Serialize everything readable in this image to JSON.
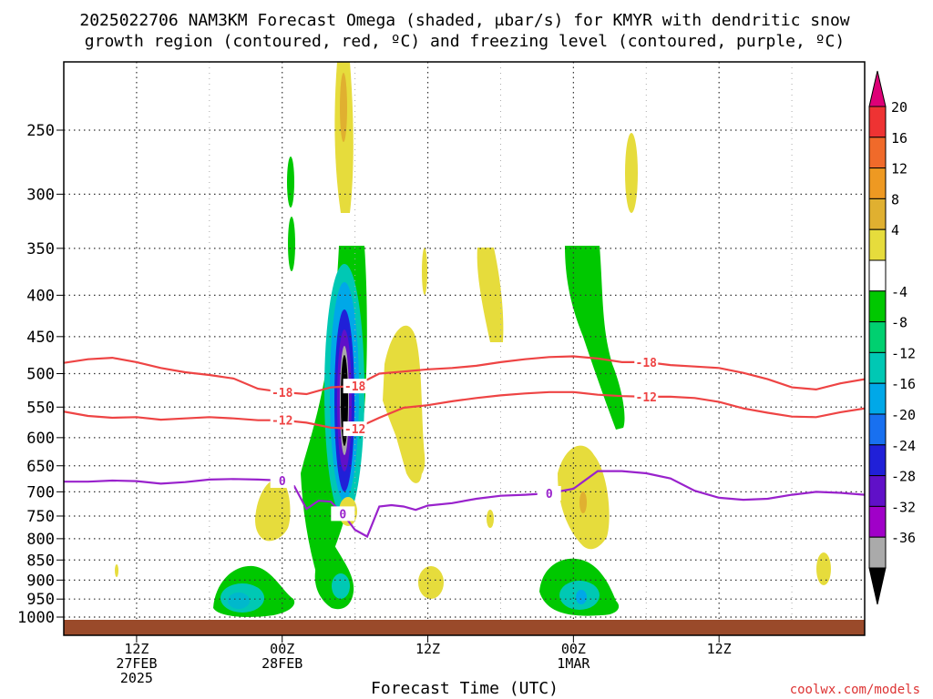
{
  "chart_data": {
    "type": "heatmap",
    "title": "2025022706 NAM3KM Forecast Omega (shaded, μbar/s) for KMYR with dendritic snow",
    "subtitle": "growth region (contoured, red, ºC) and freezing level (contoured, purple, ºC)",
    "xlabel": "Forecast Time (UTC)",
    "credit": "coolwx.com/models",
    "y_axis": {
      "scale": "pressure (log)",
      "ticks": [
        250,
        300,
        350,
        400,
        450,
        500,
        550,
        600,
        650,
        700,
        750,
        800,
        850,
        900,
        950,
        1000
      ],
      "ylim": [
        1000,
        200
      ]
    },
    "x_axis": {
      "unit": "hours since 2025-02-27 06Z",
      "xlim": [
        0,
        66
      ],
      "ticks": [
        {
          "hour": 6,
          "l1": "12Z",
          "l2": "27FEB",
          "l3": "2025"
        },
        {
          "hour": 18,
          "l1": "00Z",
          "l2": "28FEB",
          "l3": ""
        },
        {
          "hour": 30,
          "l1": "12Z",
          "l2": "",
          "l3": ""
        },
        {
          "hour": 42,
          "l1": "00Z",
          "l2": "1MAR",
          "l3": ""
        },
        {
          "hour": 54,
          "l1": "12Z",
          "l2": "",
          "l3": ""
        }
      ],
      "minor_grid_hours": [
        12,
        24,
        36,
        48,
        60
      ]
    },
    "grid": true,
    "colorbar": {
      "labels": [
        "20",
        "16",
        "12",
        "8",
        "4",
        "-4",
        "-8",
        "-12",
        "-16",
        "-20",
        "-24",
        "-28",
        "-32",
        "-36"
      ],
      "colors": [
        "#dd0077",
        "#ee3333",
        "#f06a2a",
        "#ee9922",
        "#e0b030",
        "#e6dc3c",
        "#ffffff",
        "#00c800",
        "#00d070",
        "#00c8b4",
        "#00a8e8",
        "#1870f0",
        "#2020d8",
        "#6010c8",
        "#a000c8",
        "#aaaaaa",
        "#000000"
      ]
    },
    "contours": [
      {
        "name": "-18",
        "color": "#ee4444",
        "x": [
          0,
          2,
          4,
          6,
          8,
          10,
          12,
          14,
          16,
          18,
          20,
          22,
          24,
          26,
          28,
          30,
          32,
          34,
          36,
          38,
          40,
          42,
          44,
          46,
          48,
          50,
          52,
          54,
          56,
          58,
          60,
          62,
          64,
          66
        ],
        "y": [
          485,
          480,
          478,
          484,
          492,
          498,
          502,
          507,
          522,
          527,
          530,
          520,
          518,
          500,
          497,
          494,
          492,
          489,
          484,
          480,
          477,
          476,
          479,
          484,
          484,
          488,
          490,
          492,
          499,
          508,
          520,
          523,
          514,
          508
        ]
      },
      {
        "name": "-12",
        "color": "#ee4444",
        "x": [
          0,
          2,
          4,
          6,
          8,
          10,
          12,
          14,
          16,
          18,
          20,
          22,
          24,
          26,
          28,
          30,
          32,
          34,
          36,
          38,
          40,
          42,
          44,
          46,
          48,
          50,
          52,
          54,
          56,
          58,
          60,
          62,
          64,
          66
        ],
        "y": [
          557,
          564,
          567,
          566,
          570,
          568,
          566,
          568,
          571,
          571,
          575,
          583,
          585,
          567,
          551,
          547,
          541,
          536,
          532,
          529,
          527,
          527,
          531,
          533,
          534,
          534,
          536,
          542,
          552,
          559,
          565,
          566,
          558,
          552
        ]
      },
      {
        "name": "0",
        "color": "#9922cc",
        "x": [
          0,
          2,
          4,
          6,
          8,
          10,
          12,
          14,
          16,
          18,
          19,
          20,
          21,
          22,
          23,
          24,
          25,
          26,
          27,
          28,
          29,
          30,
          32,
          34,
          36,
          38,
          40,
          42,
          44,
          46,
          48,
          50,
          52,
          54,
          56,
          58,
          60,
          62,
          64,
          66
        ],
        "y": [
          680,
          680,
          678,
          679,
          684,
          681,
          676,
          675,
          676,
          678,
          689,
          735,
          718,
          720,
          745,
          780,
          795,
          730,
          727,
          730,
          737,
          728,
          723,
          714,
          708,
          706,
          703,
          694,
          660,
          660,
          664,
          674,
          698,
          712,
          716,
          714,
          706,
          700,
          702,
          706
        ]
      }
    ],
    "omega_cells": [
      {
        "value_range": [
          -36,
          -4
        ],
        "hour": 22.8,
        "center_hpa": 510,
        "top_hpa": 350,
        "bottom_hpa": 670
      },
      {
        "value_range": [
          -20,
          -4
        ],
        "hour": 13.5,
        "center_hpa": 950,
        "top_hpa": 880,
        "bottom_hpa": 980
      },
      {
        "value_range": [
          -16,
          -4
        ],
        "hour": 40.0,
        "center_hpa": 945,
        "top_hpa": 880,
        "bottom_hpa": 975
      },
      {
        "value_range": [
          -16,
          -4
        ],
        "hour": 22.5,
        "center_hpa": 920,
        "top_hpa": 850,
        "bottom_hpa": 975
      },
      {
        "value_range": [
          -8,
          -4
        ],
        "hour": 40.5,
        "center_hpa": 450,
        "top_hpa": 350,
        "bottom_hpa": 585
      },
      {
        "value_range": [
          4,
          12
        ],
        "hour": 22.8,
        "center_hpa": 240,
        "top_hpa": 200,
        "bottom_hpa": 310
      },
      {
        "value_range": [
          4,
          8
        ],
        "hour": 26.3,
        "center_hpa": 550,
        "top_hpa": 450,
        "bottom_hpa": 690
      },
      {
        "value_range": [
          4,
          8
        ],
        "hour": 39.5,
        "center_hpa": 720,
        "top_hpa": 660,
        "bottom_hpa": 820
      },
      {
        "value_range": [
          4,
          8
        ],
        "hour": 33.5,
        "center_hpa": 400,
        "top_hpa": 350,
        "bottom_hpa": 450
      },
      {
        "value_range": [
          4,
          8
        ],
        "hour": 15.5,
        "center_hpa": 745,
        "top_hpa": 690,
        "bottom_hpa": 810
      }
    ]
  }
}
